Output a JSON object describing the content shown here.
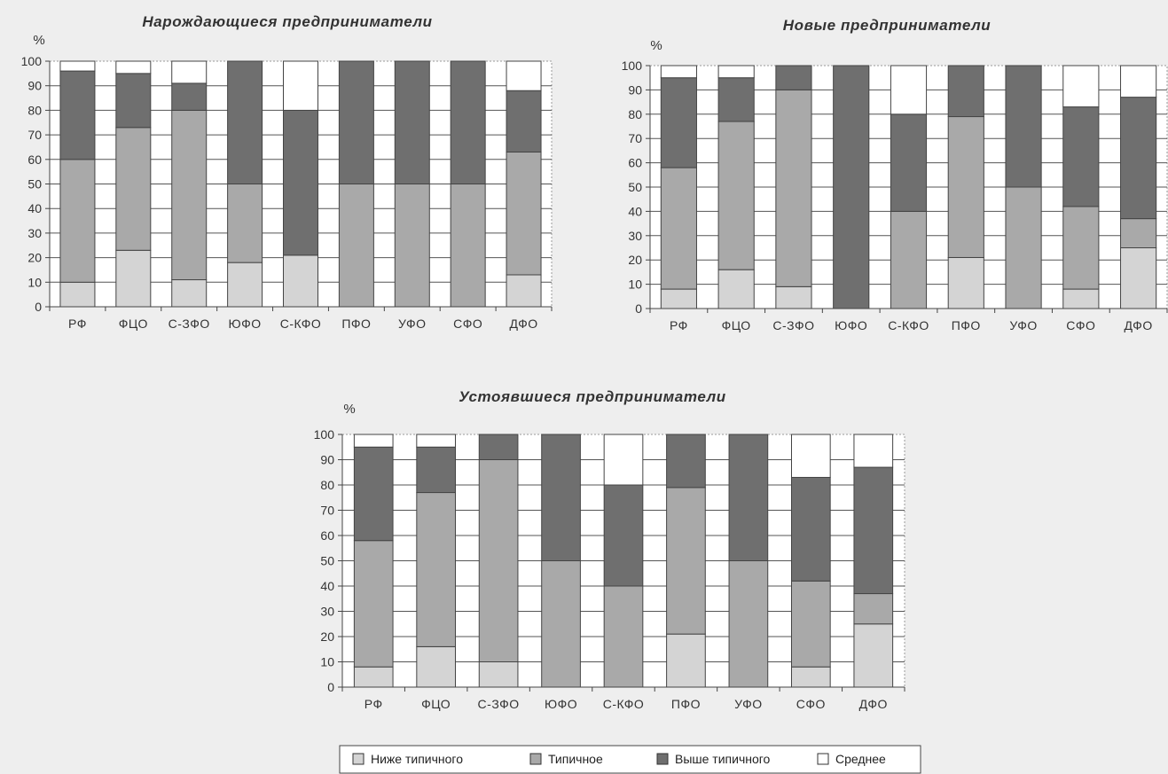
{
  "colors": {
    "below": "#d4d4d4",
    "typical": "#a9a9a9",
    "above": "#6f6f6f",
    "average": "#ffffff",
    "stroke": "#444444",
    "grid": "#9a9a9a"
  },
  "legend": {
    "items": [
      {
        "key": "below",
        "label": "Ниже типичного"
      },
      {
        "key": "typical",
        "label": "Типичное"
      },
      {
        "key": "above",
        "label": "Выше типичного"
      },
      {
        "key": "average",
        "label": "Среднее"
      }
    ]
  },
  "chart_data": [
    {
      "type": "bar",
      "stacked": true,
      "title": "Нарождающиеся предприниматели",
      "ylabel": "%",
      "ylim": [
        0,
        100
      ],
      "yticks": [
        0,
        10,
        20,
        30,
        40,
        50,
        60,
        70,
        80,
        90,
        100
      ],
      "grid": true,
      "categories": [
        "РФ",
        "ФЦО",
        "С-ЗФО",
        "ЮФО",
        "С-КФО",
        "ПФО",
        "УФО",
        "СФО",
        "ДФО"
      ],
      "series": [
        {
          "key": "below",
          "values": [
            10,
            23,
            11,
            18,
            21,
            0,
            0,
            0,
            13
          ]
        },
        {
          "key": "typical",
          "values": [
            50,
            50,
            69,
            32,
            0,
            50,
            50,
            50,
            50
          ]
        },
        {
          "key": "above",
          "values": [
            36,
            22,
            11,
            50,
            59,
            50,
            50,
            50,
            25
          ]
        },
        {
          "key": "average",
          "values": [
            4,
            5,
            9,
            0,
            20,
            0,
            0,
            0,
            12
          ]
        }
      ]
    },
    {
      "type": "bar",
      "stacked": true,
      "title": "Новые предприниматели",
      "ylabel": "%",
      "ylim": [
        0,
        100
      ],
      "yticks": [
        0,
        10,
        20,
        30,
        40,
        50,
        60,
        70,
        80,
        90,
        100
      ],
      "grid": true,
      "categories": [
        "РФ",
        "ФЦО",
        "С-ЗФО",
        "ЮФО",
        "С-КФО",
        "ПФО",
        "УФО",
        "СФО",
        "ДФО"
      ],
      "series": [
        {
          "key": "below",
          "values": [
            8,
            16,
            9,
            0,
            0,
            21,
            0,
            8,
            25
          ]
        },
        {
          "key": "typical",
          "values": [
            50,
            61,
            81,
            0,
            40,
            58,
            50,
            34,
            12
          ]
        },
        {
          "key": "above",
          "values": [
            37,
            18,
            10,
            100,
            40,
            21,
            50,
            41,
            50
          ]
        },
        {
          "key": "average",
          "values": [
            5,
            5,
            0,
            0,
            20,
            0,
            0,
            17,
            13
          ]
        }
      ]
    },
    {
      "type": "bar",
      "stacked": true,
      "title": "Устоявшиеся предприниматели",
      "ylabel": "%",
      "ylim": [
        0,
        100
      ],
      "yticks": [
        0,
        10,
        20,
        30,
        40,
        50,
        60,
        70,
        80,
        90,
        100
      ],
      "grid": true,
      "categories": [
        "РФ",
        "ФЦО",
        "С-ЗФО",
        "ЮФО",
        "С-КФО",
        "ПФО",
        "УФО",
        "СФО",
        "ДФО"
      ],
      "series": [
        {
          "key": "below",
          "values": [
            8,
            16,
            10,
            0,
            0,
            21,
            0,
            8,
            25
          ]
        },
        {
          "key": "typical",
          "values": [
            50,
            61,
            80,
            50,
            40,
            58,
            50,
            34,
            12
          ]
        },
        {
          "key": "above",
          "values": [
            37,
            18,
            10,
            50,
            40,
            21,
            50,
            41,
            50
          ]
        },
        {
          "key": "average",
          "values": [
            5,
            5,
            0,
            0,
            20,
            0,
            0,
            17,
            13
          ]
        }
      ]
    }
  ]
}
